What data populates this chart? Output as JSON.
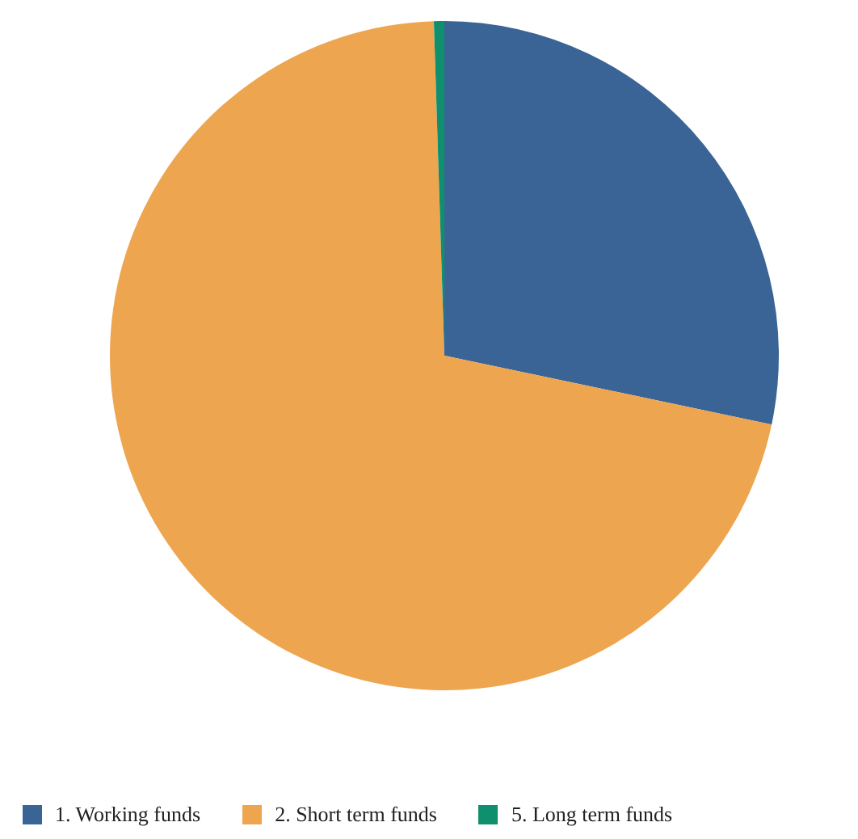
{
  "chart_data": {
    "type": "pie",
    "categories": [
      "1. Working funds",
      "2. Short term funds",
      "5. Long term funds"
    ],
    "values": [
      28.3,
      71.2,
      0.5
    ],
    "colors": [
      "#3a6495",
      "#eea550",
      "#0f8f6e"
    ],
    "legend": "bottom"
  }
}
